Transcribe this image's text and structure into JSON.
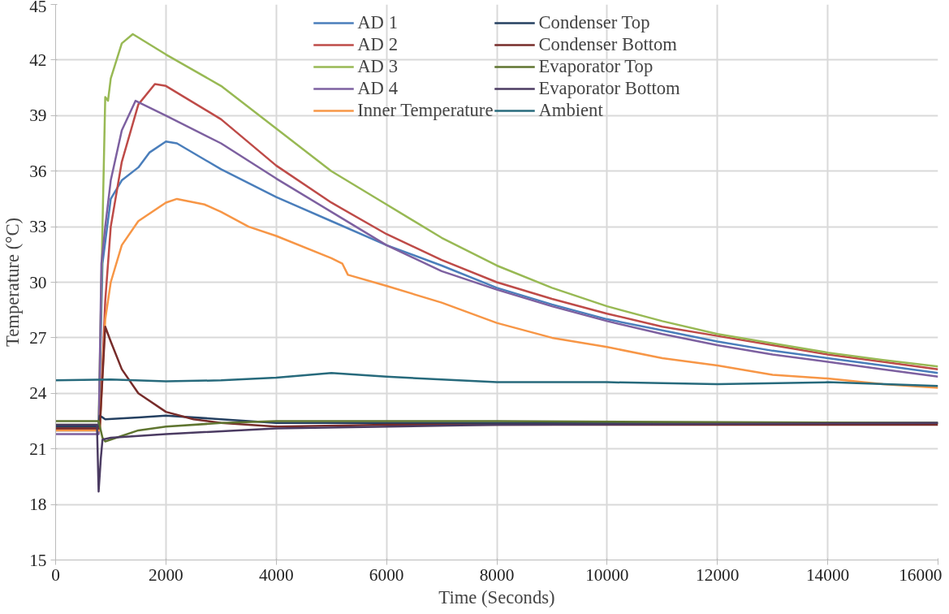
{
  "chart_data": {
    "type": "line",
    "xlabel": "Time (Seconds)",
    "ylabel": "Temperature (°C)",
    "xlim": [
      0,
      16000
    ],
    "ylim": [
      15,
      45
    ],
    "xticks": [
      0,
      2000,
      4000,
      6000,
      8000,
      10000,
      12000,
      14000,
      16000
    ],
    "yticks": [
      15,
      18,
      21,
      24,
      27,
      30,
      33,
      36,
      39,
      42,
      45
    ],
    "grid": true,
    "legend": "top",
    "line_style": "solid",
    "marker": "none",
    "series": [
      {
        "name": "AD 1",
        "color": "#4a7ebb",
        "x": [
          0,
          780,
          850,
          1000,
          1200,
          1500,
          1700,
          2000,
          2200,
          3000,
          4000,
          5000,
          6000,
          7000,
          8000,
          9000,
          10000,
          11000,
          12000,
          13000,
          14000,
          15000,
          16000
        ],
        "values": [
          22.0,
          22.0,
          31.0,
          34.5,
          35.5,
          36.2,
          37.0,
          37.6,
          37.5,
          36.1,
          34.6,
          33.3,
          32.0,
          30.9,
          29.7,
          28.8,
          28.0,
          27.4,
          26.8,
          26.3,
          25.9,
          25.5,
          25.1
        ]
      },
      {
        "name": "AD 2",
        "color": "#be4b48",
        "x": [
          0,
          800,
          900,
          1000,
          1200,
          1500,
          1800,
          2000,
          3000,
          4000,
          5000,
          6000,
          7000,
          8000,
          9000,
          10000,
          11000,
          12000,
          13000,
          14000,
          15000,
          16000
        ],
        "values": [
          22.1,
          22.1,
          29.0,
          33.0,
          36.5,
          39.6,
          40.7,
          40.6,
          38.8,
          36.3,
          34.3,
          32.6,
          31.2,
          30.0,
          29.1,
          28.3,
          27.6,
          27.1,
          26.6,
          26.1,
          25.7,
          25.3
        ]
      },
      {
        "name": "AD 3",
        "color": "#98b954",
        "x": [
          0,
          780,
          850,
          900,
          950,
          1000,
          1200,
          1400,
          2000,
          3000,
          4000,
          5000,
          6000,
          7000,
          8000,
          9000,
          10000,
          11000,
          12000,
          13000,
          14000,
          15000,
          16000
        ],
        "values": [
          22.3,
          22.3,
          33.0,
          40.0,
          39.8,
          41.0,
          42.9,
          43.4,
          42.3,
          40.6,
          38.3,
          36.0,
          34.2,
          32.4,
          30.9,
          29.7,
          28.7,
          27.9,
          27.2,
          26.7,
          26.2,
          25.8,
          25.45
        ]
      },
      {
        "name": "AD 4",
        "color": "#7d60a0",
        "x": [
          0,
          780,
          830,
          900,
          1000,
          1200,
          1450,
          2000,
          3000,
          4000,
          5000,
          6000,
          7000,
          8000,
          9000,
          10000,
          11000,
          12000,
          13000,
          14000,
          15000,
          16000
        ],
        "values": [
          21.8,
          21.8,
          31.0,
          33.0,
          35.5,
          38.2,
          39.8,
          39.0,
          37.5,
          35.6,
          33.8,
          32.0,
          30.6,
          29.6,
          28.7,
          27.9,
          27.2,
          26.6,
          26.1,
          25.7,
          25.3,
          24.9
        ]
      },
      {
        "name": "Inner Temperature",
        "color": "#f79646",
        "x": [
          0,
          800,
          900,
          1000,
          1200,
          1500,
          2000,
          2200,
          2700,
          3000,
          3500,
          4000,
          5000,
          5200,
          5300,
          6000,
          7000,
          8000,
          9000,
          10000,
          11000,
          12000,
          13000,
          14000,
          15000,
          16000
        ],
        "values": [
          22.0,
          22.0,
          28.0,
          30.0,
          32.0,
          33.3,
          34.3,
          34.5,
          34.2,
          33.8,
          33.0,
          32.5,
          31.3,
          31.0,
          30.4,
          29.8,
          28.9,
          27.8,
          27.0,
          26.5,
          25.9,
          25.5,
          25.0,
          24.8,
          24.5,
          24.3
        ]
      },
      {
        "name": "Condenser Top",
        "color": "#254061",
        "x": [
          0,
          780,
          800,
          900,
          1500,
          2000,
          3000,
          4000,
          6000,
          8000,
          12000,
          16000
        ],
        "values": [
          22.2,
          22.2,
          22.8,
          22.6,
          22.7,
          22.8,
          22.6,
          22.4,
          22.4,
          22.4,
          22.4,
          22.4
        ]
      },
      {
        "name": "Condenser Bottom",
        "color": "#772c2a",
        "x": [
          0,
          800,
          900,
          1000,
          1200,
          1500,
          2000,
          2500,
          3000,
          4000,
          6000,
          10000,
          16000
        ],
        "values": [
          22.1,
          22.1,
          27.6,
          26.8,
          25.3,
          24.0,
          23.0,
          22.6,
          22.4,
          22.2,
          22.3,
          22.3,
          22.3
        ]
      },
      {
        "name": "Evaporator Top",
        "color": "#5f7530",
        "x": [
          0,
          780,
          850,
          900,
          1000,
          1500,
          2000,
          3000,
          4000,
          6000,
          8000,
          16000
        ],
        "values": [
          22.5,
          22.5,
          21.6,
          21.4,
          21.5,
          22.0,
          22.2,
          22.4,
          22.5,
          22.5,
          22.5,
          22.4
        ]
      },
      {
        "name": "Evaporator Bottom",
        "color": "#4b3b62",
        "x": [
          0,
          750,
          780,
          820,
          850,
          1000,
          2000,
          4000,
          8000,
          16000
        ],
        "values": [
          22.3,
          22.3,
          18.7,
          20.5,
          21.5,
          21.6,
          21.8,
          22.1,
          22.3,
          22.4
        ]
      },
      {
        "name": "Ambient",
        "color": "#276a7c",
        "x": [
          0,
          1000,
          2000,
          3000,
          4000,
          5000,
          6000,
          7000,
          8000,
          10000,
          12000,
          14000,
          16000
        ],
        "values": [
          24.7,
          24.75,
          24.65,
          24.7,
          24.85,
          25.1,
          24.9,
          24.75,
          24.6,
          24.6,
          24.5,
          24.6,
          24.4
        ]
      }
    ]
  }
}
